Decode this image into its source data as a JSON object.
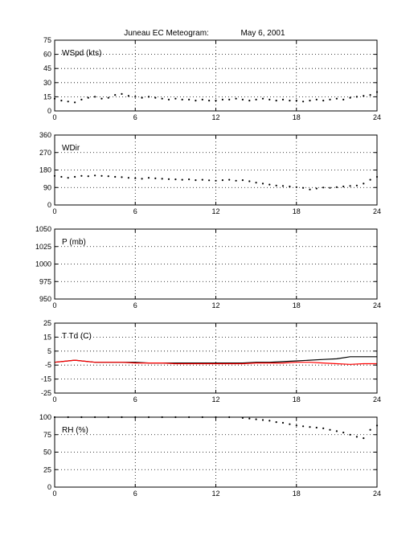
{
  "figure": {
    "title": "Juneau EC Meteogram:",
    "date": "May  6, 2001"
  },
  "chart_data": [
    {
      "type": "scatter",
      "label": "WSpd (kts)",
      "xlim": [
        0,
        24
      ],
      "ylim": [
        0,
        75
      ],
      "xticks": [
        "0",
        "6",
        "12",
        "18",
        "24"
      ],
      "yticks": [
        "0",
        "15",
        "30",
        "45",
        "60",
        "75"
      ],
      "grid": true,
      "series": [
        {
          "color": "#000000",
          "x": [
            0,
            0.5,
            1,
            1.5,
            2,
            2.5,
            3,
            3.5,
            4,
            4.5,
            5,
            5.5,
            6,
            6.5,
            7,
            7.5,
            8,
            8.5,
            9,
            9.5,
            10,
            10.5,
            11,
            11.5,
            12,
            12.5,
            13,
            13.5,
            14,
            14.5,
            15,
            15.5,
            16,
            16.5,
            17,
            17.5,
            18,
            18.5,
            19,
            19.5,
            20,
            20.5,
            21,
            21.5,
            22,
            22.5,
            23,
            23.5,
            24
          ],
          "y": [
            13,
            11,
            10,
            9,
            12,
            14,
            15,
            13,
            14,
            17,
            18,
            16,
            15,
            14,
            15,
            14,
            13,
            12,
            13,
            12,
            12,
            11,
            12,
            11,
            11,
            12,
            12,
            13,
            12,
            11,
            12,
            13,
            12,
            11,
            12,
            11,
            11,
            10,
            11,
            12,
            11,
            12,
            13,
            12,
            14,
            15,
            16,
            17,
            20
          ]
        }
      ]
    },
    {
      "type": "scatter",
      "label": "WDir",
      "xlim": [
        0,
        24
      ],
      "ylim": [
        0,
        360
      ],
      "xticks": [
        "0",
        "6",
        "12",
        "18",
        "24"
      ],
      "yticks": [
        "0",
        "90",
        "180",
        "270",
        "360"
      ],
      "grid": true,
      "series": [
        {
          "color": "#000000",
          "x": [
            0,
            0.5,
            1,
            1.5,
            2,
            2.5,
            3,
            3.5,
            4,
            4.5,
            5,
            5.5,
            6,
            6.5,
            7,
            7.5,
            8,
            8.5,
            9,
            9.5,
            10,
            10.5,
            11,
            11.5,
            12,
            12.5,
            13,
            13.5,
            14,
            14.5,
            15,
            15.5,
            16,
            16.5,
            17,
            17.5,
            18,
            18.5,
            19,
            19.5,
            20,
            20.5,
            21,
            21.5,
            22,
            22.5,
            23,
            23.5,
            24
          ],
          "y": [
            150,
            145,
            140,
            145,
            150,
            148,
            152,
            150,
            148,
            145,
            143,
            140,
            138,
            135,
            140,
            137,
            135,
            133,
            132,
            130,
            132,
            128,
            130,
            127,
            125,
            128,
            130,
            125,
            128,
            122,
            115,
            110,
            105,
            100,
            98,
            95,
            92,
            88,
            80,
            85,
            90,
            88,
            92,
            95,
            98,
            100,
            110,
            130,
            145
          ]
        }
      ]
    },
    {
      "type": "line",
      "label": "P (mb)",
      "xlim": [
        0,
        24
      ],
      "ylim": [
        950,
        1050
      ],
      "xticks": [
        "0",
        "6",
        "12",
        "18",
        "24"
      ],
      "yticks": [
        "950",
        "975",
        "1000",
        "1025",
        "1050"
      ],
      "grid": true,
      "series": []
    },
    {
      "type": "line",
      "label": "T Td (C)",
      "xlim": [
        0,
        24
      ],
      "ylim": [
        -25,
        25
      ],
      "xticks": [
        "0",
        "6",
        "12",
        "18",
        "24"
      ],
      "yticks": [
        "-25",
        "-15",
        "-5",
        "5",
        "15",
        "25"
      ],
      "grid": true,
      "series": [
        {
          "color": "#000000",
          "x": [
            0,
            1,
            1.5,
            2,
            3,
            4,
            5,
            6,
            7,
            8,
            9,
            10,
            11,
            12,
            13,
            14,
            15,
            16,
            17,
            18,
            19,
            20,
            21,
            22,
            23,
            24
          ],
          "y": [
            -3,
            -2,
            -1.5,
            -2,
            -3,
            -3,
            -3,
            -3,
            -3.5,
            -3.5,
            -3.5,
            -3.5,
            -3.5,
            -3.5,
            -3.5,
            -3.5,
            -3,
            -3,
            -2.5,
            -2,
            -1.5,
            -1,
            -0.5,
            1,
            1,
            1
          ]
        },
        {
          "color": "#ff0000",
          "x": [
            0,
            1,
            1.5,
            2,
            3,
            4,
            5,
            6,
            7,
            8,
            9,
            10,
            11,
            12,
            13,
            14,
            15,
            16,
            17,
            18,
            19,
            20,
            21,
            22,
            23,
            24
          ],
          "y": [
            -3,
            -2,
            -1.5,
            -2,
            -3,
            -3,
            -3,
            -3.5,
            -3.5,
            -3.5,
            -4,
            -4,
            -4,
            -4,
            -4,
            -4,
            -3.5,
            -3.5,
            -3.5,
            -3,
            -3,
            -3.5,
            -4,
            -4.5,
            -4,
            -4
          ]
        }
      ]
    },
    {
      "type": "scatter",
      "label": "RH (%)",
      "xlim": [
        0,
        24
      ],
      "ylim": [
        0,
        100
      ],
      "xticks": [
        "0",
        "6",
        "12",
        "18",
        "24"
      ],
      "yticks": [
        "0",
        "25",
        "50",
        "75",
        "100"
      ],
      "grid": true,
      "series": [
        {
          "color": "#000000",
          "x": [
            0,
            1,
            2,
            3,
            4,
            5,
            6,
            7,
            8,
            9,
            10,
            11,
            12,
            13,
            14,
            14.5,
            15,
            15.5,
            16,
            16.5,
            17,
            17.5,
            18,
            18.5,
            19,
            19.5,
            20,
            20.5,
            21,
            21.5,
            22,
            22.5,
            23,
            23.5,
            24
          ],
          "y": [
            100,
            100,
            100,
            100,
            100,
            100,
            100,
            100,
            100,
            100,
            100,
            100,
            100,
            100,
            99,
            98,
            97,
            96,
            95,
            93,
            92,
            90,
            88,
            87,
            86,
            85,
            84,
            82,
            80,
            78,
            75,
            72,
            70,
            82,
            88
          ]
        }
      ]
    }
  ]
}
